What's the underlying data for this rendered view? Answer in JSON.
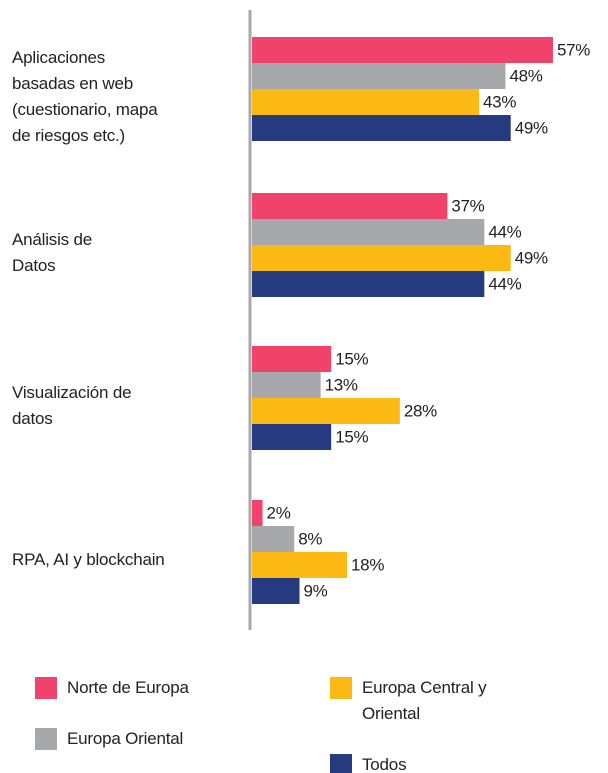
{
  "chart_data": {
    "type": "bar",
    "orientation": "horizontal",
    "categories": [
      "Aplicaciones\nbasadas en web\n(cuestionario, mapa\nde riesgos etc.)",
      "Análisis de\nDatos",
      "Visualización de\ndatos",
      "RPA, AI y blockchain"
    ],
    "series": [
      {
        "name": "Norte de Europa",
        "color": "#f0426a",
        "values": [
          57,
          37,
          15,
          2
        ],
        "value_labels": [
          "57%",
          "37%",
          "15%",
          "2%"
        ]
      },
      {
        "name": "Europa Oriental",
        "color": "#a7a8ab",
        "values": [
          48,
          44,
          13,
          8
        ],
        "value_labels": [
          "48%",
          "44%",
          "13%",
          "8%"
        ]
      },
      {
        "name": "Europa Central y\nOriental",
        "color": "#fdb913",
        "values": [
          43,
          49,
          28,
          18
        ],
        "value_labels": [
          "43%",
          "49%",
          "28%",
          "18%"
        ]
      },
      {
        "name": "Todos",
        "color": "#263a7f",
        "values": [
          49,
          44,
          15,
          9
        ],
        "value_labels": [
          "49%",
          "44%",
          "15%",
          "9%"
        ]
      }
    ]
  }
}
